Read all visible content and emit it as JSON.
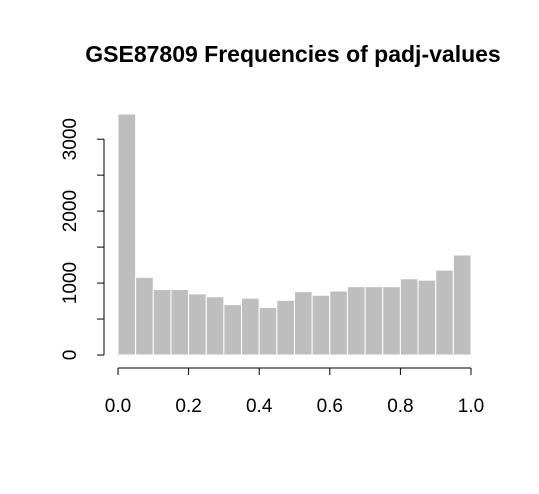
{
  "chart_data": {
    "type": "bar",
    "title": "GSE87809 Frequencies of padj-values",
    "xlabel": "",
    "ylabel": "",
    "bin_width": 0.05,
    "bin_starts": [
      0.0,
      0.05,
      0.1,
      0.15,
      0.2,
      0.25,
      0.3,
      0.35,
      0.4,
      0.45,
      0.5,
      0.55,
      0.6,
      0.65,
      0.7,
      0.75,
      0.8,
      0.85,
      0.9,
      0.95
    ],
    "values": [
      3350,
      1080,
      910,
      910,
      850,
      810,
      700,
      790,
      660,
      760,
      880,
      830,
      890,
      950,
      950,
      950,
      1060,
      1040,
      1180,
      1390
    ],
    "x_ticks": [
      "0.0",
      "0.2",
      "0.4",
      "0.6",
      "0.8",
      "1.0"
    ],
    "x_tick_values": [
      0,
      0.2,
      0.4,
      0.6,
      0.8,
      1.0
    ],
    "y_ticks": [
      "0",
      "1000",
      "2000",
      "3000"
    ],
    "y_tick_values": [
      0,
      1000,
      2000,
      3000
    ],
    "y_minor_tick_values": [
      500,
      1500,
      2500
    ],
    "xlim": [
      0,
      1
    ],
    "ylim": [
      0,
      3350
    ],
    "bar_color": "#bebebe",
    "grid": false,
    "legend": "none"
  }
}
